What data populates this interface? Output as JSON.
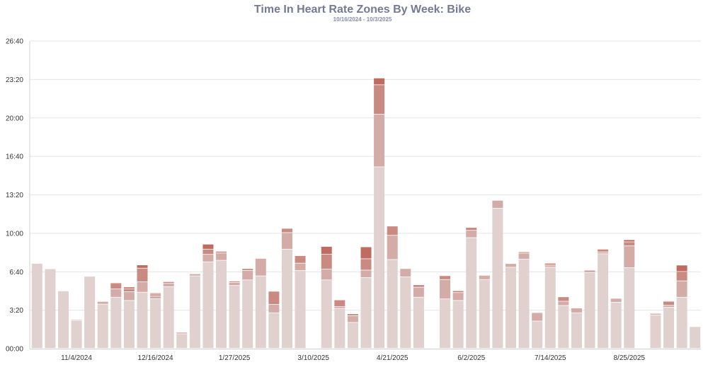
{
  "chart_data": {
    "type": "bar",
    "stacked": true,
    "title": "Time In Heart Rate Zones By Week: Bike",
    "subtitle": "10/16/2024 - 10/3/2025",
    "xlabel": "",
    "ylabel": "",
    "value_units": "minutes",
    "ylim": [
      0,
      1600
    ],
    "yticks": [
      {
        "value": 0,
        "label": "00:00"
      },
      {
        "value": 200,
        "label": "3:20"
      },
      {
        "value": 400,
        "label": "6:40"
      },
      {
        "value": 600,
        "label": "10:00"
      },
      {
        "value": 800,
        "label": "13:20"
      },
      {
        "value": 1000,
        "label": "16:40"
      },
      {
        "value": 1200,
        "label": "20:00"
      },
      {
        "value": 1400,
        "label": "23:20"
      },
      {
        "value": 1600,
        "label": "26:40"
      }
    ],
    "xticks": [
      {
        "index": 3,
        "label": "11/4/2024"
      },
      {
        "index": 9,
        "label": "12/16/2024"
      },
      {
        "index": 15,
        "label": "1/27/2025"
      },
      {
        "index": 21,
        "label": "3/10/2025"
      },
      {
        "index": 27,
        "label": "4/21/2025"
      },
      {
        "index": 33,
        "label": "6/2/2025"
      },
      {
        "index": 39,
        "label": "7/14/2025"
      },
      {
        "index": 45,
        "label": "8/25/2025"
      }
    ],
    "grid": true,
    "series": [
      {
        "name": "Zone 1",
        "color": "#e0d0ce",
        "values": [
          442,
          414,
          299,
          145,
          372,
          230,
          266,
          249,
          292,
          258,
          321,
          76,
          377,
          450,
          458,
          327,
          356,
          377,
          185,
          516,
          405,
          0,
          356,
          208,
          135,
          368,
          944,
          462,
          372,
          266,
          0,
          257,
          249,
          576,
          358,
          729,
          422,
          464,
          142,
          422,
          223,
          185,
          394,
          492,
          240,
          420,
          0,
          174,
          214,
          266,
          113
        ]
      },
      {
        "name": "Zone 2",
        "color": "#d4aca7",
        "values": [
          0,
          0,
          0,
          5,
          2,
          14,
          43,
          46,
          54,
          15,
          17,
          8,
          11,
          39,
          38,
          16,
          49,
          91,
          44,
          86,
          38,
          0,
          56,
          9,
          35,
          39,
          274,
          126,
          43,
          52,
          0,
          101,
          41,
          38,
          22,
          41,
          19,
          31,
          44,
          11,
          22,
          25,
          13,
          10,
          20,
          113,
          0,
          8,
          10,
          85,
          0
        ]
      },
      {
        "name": "Zone 3",
        "color": "#c98b81",
        "values": [
          0,
          0,
          0,
          0,
          0,
          0,
          29,
          15,
          71,
          9,
          9,
          0,
          0,
          27,
          9,
          7,
          10,
          0,
          68,
          22,
          39,
          0,
          78,
          35,
          10,
          59,
          153,
          48,
          0,
          13,
          0,
          20,
          10,
          15,
          0,
          0,
          0,
          7,
          0,
          10,
          23,
          0,
          0,
          14,
          0,
          21,
          0,
          0,
          21,
          49,
          0
        ]
      },
      {
        "name": "Zone 4",
        "color": "#c06b5f",
        "values": [
          0,
          0,
          0,
          0,
          0,
          0,
          4,
          9,
          17,
          6,
          0,
          0,
          0,
          26,
          0,
          0,
          0,
          0,
          0,
          0,
          0,
          0,
          40,
          0,
          0,
          62,
          35,
          0,
          0,
          0,
          0,
          0,
          0,
          0,
          0,
          0,
          0,
          0,
          0,
          0,
          0,
          0,
          0,
          0,
          0,
          11,
          0,
          0,
          0,
          33,
          0
        ]
      }
    ]
  }
}
